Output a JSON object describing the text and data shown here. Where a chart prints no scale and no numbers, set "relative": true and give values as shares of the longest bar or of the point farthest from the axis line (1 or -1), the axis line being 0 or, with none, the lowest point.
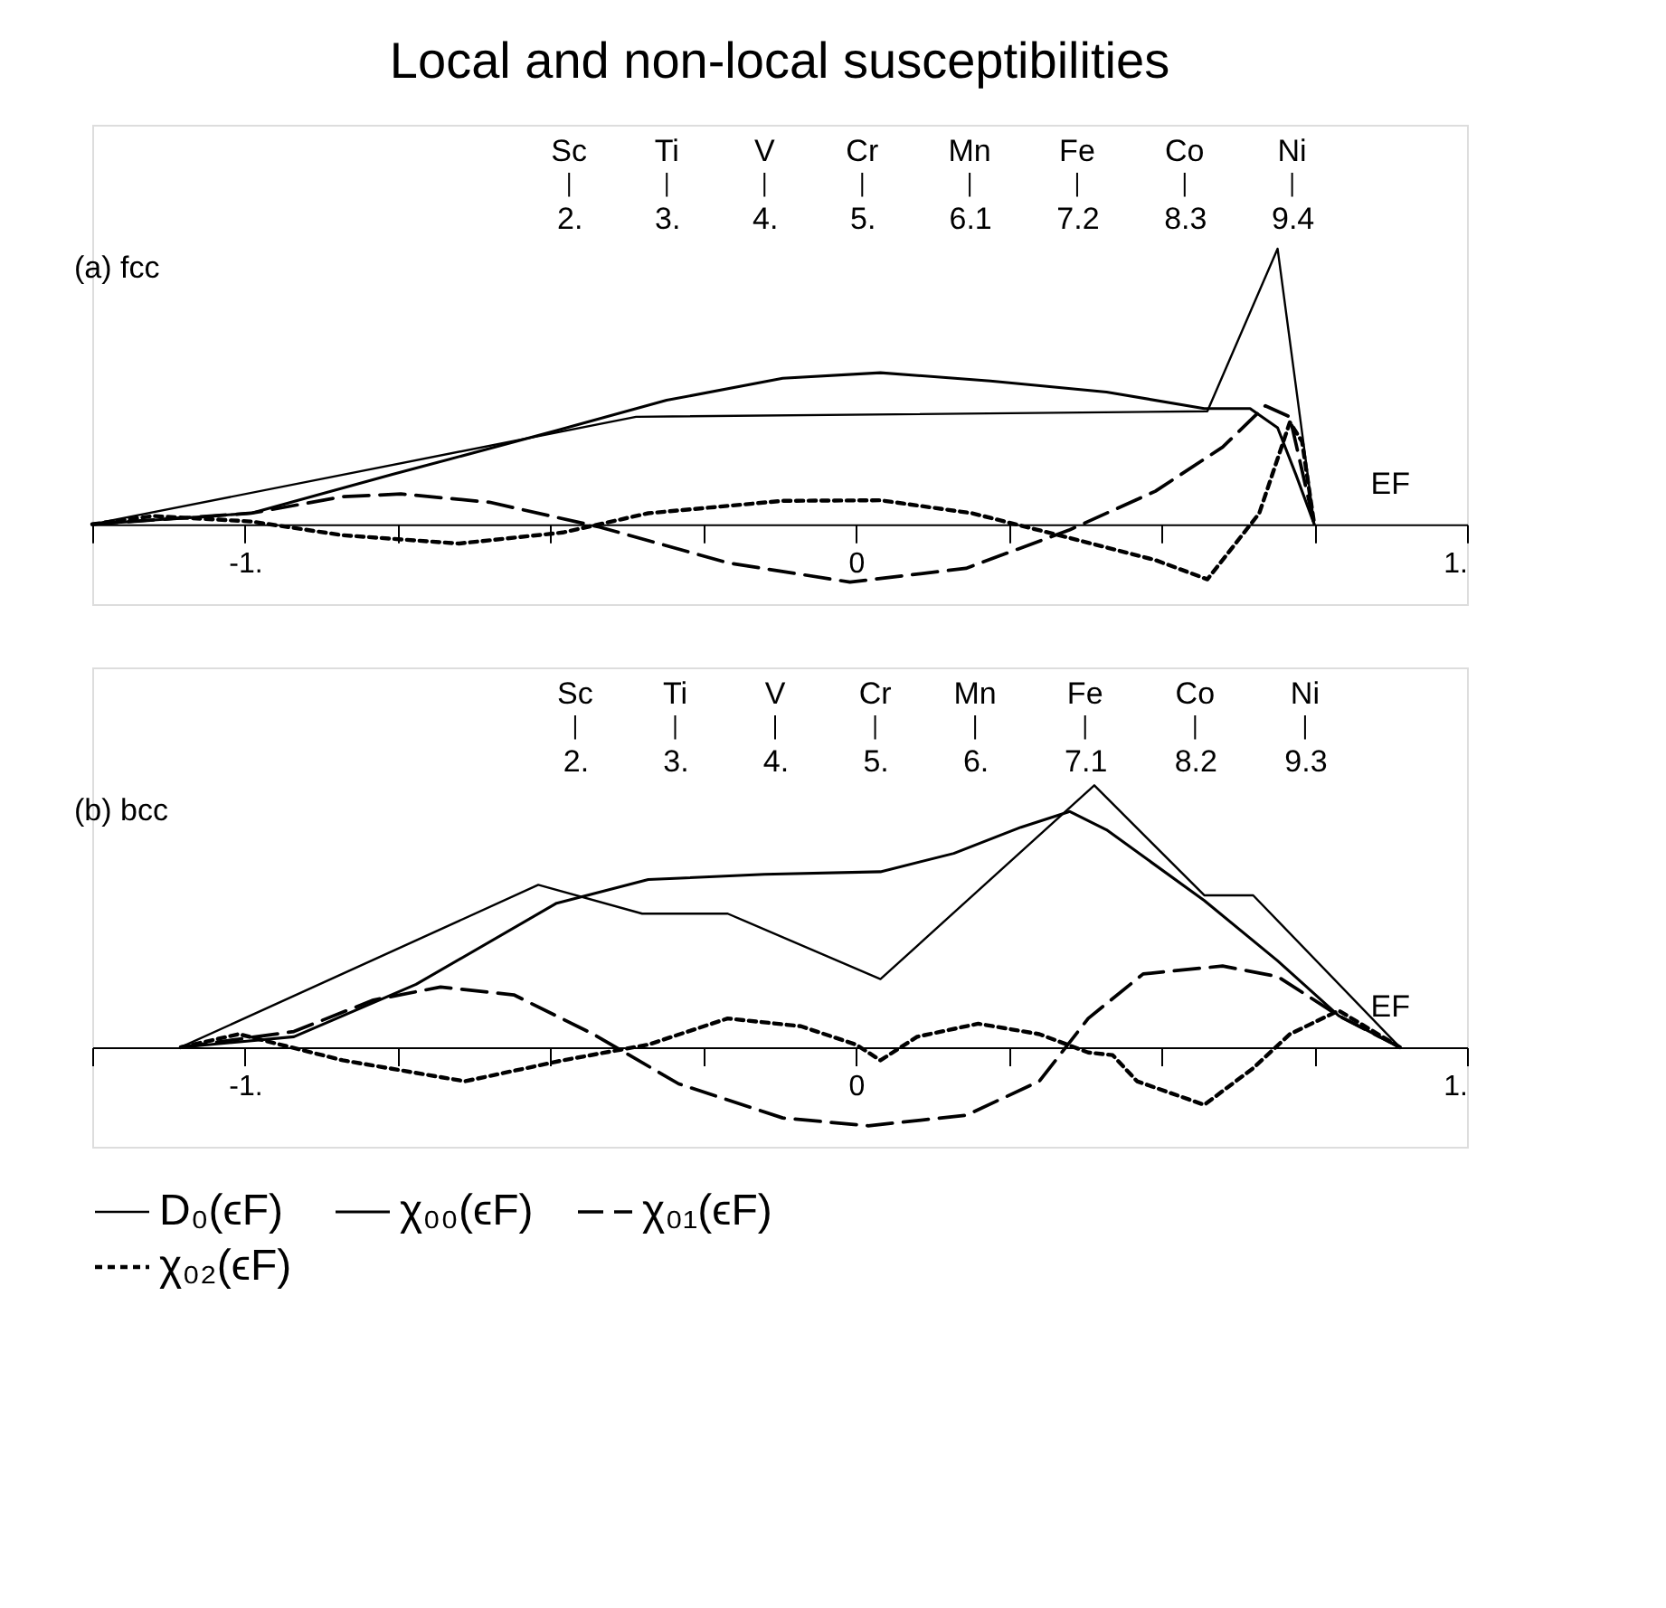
{
  "chart_data": [
    {
      "type": "line",
      "title": "Local and non-local susceptibilities",
      "relative": true,
      "legend": false,
      "xlim": [
        -1.25,
        1
      ],
      "xticks": [
        {
          "value": -1.25,
          "label": null
        },
        {
          "value": -1,
          "label": "-1."
        },
        {
          "value": -0.75,
          "label": null
        },
        {
          "value": -0.5,
          "label": null
        },
        {
          "value": -0.25,
          "label": null
        },
        0,
        {
          "value": 0.25,
          "label": null
        },
        {
          "value": 0.5,
          "label": null
        },
        {
          "value": 0.75,
          "label": null
        },
        {
          "value": 1,
          "label": "1."
        }
      ],
      "x2lim": [
        -2.88,
        11.19
      ],
      "x2ticks": [
        {
          "value": 2,
          "label": "2."
        },
        {
          "value": 3,
          "label": "3."
        },
        {
          "value": 4,
          "label": "4."
        },
        {
          "value": 5,
          "label": "5."
        },
        6.1,
        7.2,
        8.3,
        9.4
      ],
      "tick_labels": "x",
      "grid": false,
      "series": [
        {
          "color": "#000000",
          "line_style": "solid",
          "x": [
            -1.25,
            -0.36,
            0.575,
            0.69,
            0.75
          ],
          "values": [
            0,
            0.39,
            0.41,
            1,
            0
          ]
        },
        {
          "color": "#000000",
          "line_style": "solid",
          "x": [
            -1.25,
            -0.99,
            -0.76,
            -0.49,
            -0.31,
            -0.12,
            0.04,
            0.22,
            0.41,
            0.57,
            0.645,
            0.69,
            0.72,
            0.75
          ],
          "values": [
            0,
            0.04,
            0.18,
            0.34,
            0.45,
            0.53,
            0.55,
            0.52,
            0.48,
            0.42,
            0.42,
            0.35,
            0.18,
            0
          ]
        },
        {
          "color": "#000000",
          "line_style": "dashed",
          "x": [
            -1.25,
            -0.99,
            -0.84,
            -0.745,
            -0.6,
            -0.42,
            -0.21,
            -0.01,
            0.18,
            0.35,
            0.49,
            0.6,
            0.67,
            0.71,
            0.75
          ],
          "values": [
            0,
            0.04,
            0.1,
            0.11,
            0.08,
            -0.01,
            -0.14,
            -0.21,
            -0.16,
            -0.02,
            0.12,
            0.28,
            0.43,
            0.39,
            0
          ]
        },
        {
          "color": "#000000",
          "line_style": "dotted",
          "x": [
            -1.25,
            -1.15,
            -0.99,
            -0.84,
            -0.65,
            -0.48,
            -0.34,
            -0.12,
            0.04,
            0.19,
            0.35,
            0.49,
            0.575,
            0.66,
            0.71,
            0.73,
            0.75
          ],
          "values": [
            0,
            0.03,
            0.01,
            -0.04,
            -0.07,
            -0.03,
            0.04,
            0.085,
            0.087,
            0.04,
            -0.05,
            -0.13,
            -0.2,
            0.04,
            0.37,
            0.3,
            0
          ]
        }
      ],
      "annotations": [
        "(a) fcc",
        "EF",
        "Sc",
        "Ti",
        "V",
        "Cr",
        "Mn",
        "Fe",
        "Co",
        "Ni"
      ]
    },
    {
      "type": "line",
      "relative": true,
      "legend": "bottom",
      "xlim": [
        -1.25,
        1
      ],
      "xticks": [
        {
          "value": -1.25,
          "label": null
        },
        {
          "value": -1,
          "label": "-1."
        },
        {
          "value": -0.75,
          "label": null
        },
        {
          "value": -0.5,
          "label": null
        },
        {
          "value": -0.25,
          "label": null
        },
        0,
        {
          "value": 0.25,
          "label": null
        },
        {
          "value": 0.5,
          "label": null
        },
        {
          "value": 0.75,
          "label": null
        },
        {
          "value": 1,
          "label": "1."
        }
      ],
      "x2lim": [
        -2.83,
        10.92
      ],
      "x2ticks": [
        {
          "value": 2,
          "label": "2."
        },
        {
          "value": 3,
          "label": "3."
        },
        {
          "value": 4,
          "label": "4."
        },
        {
          "value": 5,
          "label": "5."
        },
        {
          "value": 6,
          "label": "6."
        },
        7.1,
        8.2,
        9.3
      ],
      "tick_labels": "x",
      "grid": false,
      "series": [
        {
          "name": "D₀(ϵF)",
          "color": "#000000",
          "line_style": "solid",
          "x": [
            -1.105,
            -0.52,
            -0.35,
            -0.21,
            0.04,
            0.39,
            0.57,
            0.65,
            0.89
          ],
          "values": [
            0,
            0.62,
            0.51,
            0.51,
            0.26,
            1,
            0.58,
            0.58,
            0
          ]
        },
        {
          "name": "χ₀₀(ϵF)",
          "color": "#000000",
          "line_style": "solid",
          "x": [
            -1.105,
            -0.92,
            -0.72,
            -0.49,
            -0.34,
            -0.15,
            0.04,
            0.16,
            0.27,
            0.35,
            0.41,
            0.57,
            0.69,
            0.79,
            0.89
          ],
          "values": [
            0,
            0.04,
            0.24,
            0.55,
            0.64,
            0.66,
            0.67,
            0.74,
            0.84,
            0.9,
            0.83,
            0.56,
            0.33,
            0.12,
            0
          ]
        },
        {
          "name": "χ₀₁(ϵF)",
          "color": "#000000",
          "line_style": "dashed",
          "x": [
            -1.105,
            -0.92,
            -0.79,
            -0.68,
            -0.56,
            -0.43,
            -0.29,
            -0.12,
            0.02,
            0.18,
            0.3,
            0.38,
            0.47,
            0.6,
            0.69,
            0.79,
            0.89
          ],
          "values": [
            0,
            0.06,
            0.18,
            0.23,
            0.2,
            0.05,
            -0.14,
            -0.27,
            -0.3,
            -0.26,
            -0.13,
            0.11,
            0.28,
            0.31,
            0.27,
            0.12,
            0
          ]
        },
        {
          "name": "χ₀₂(ϵF)",
          "color": "#000000",
          "line_style": "dotted",
          "x": [
            -1.105,
            -1.01,
            -0.84,
            -0.64,
            -0.48,
            -0.34,
            -0.21,
            -0.09,
            0,
            0.04,
            0.1,
            0.2,
            0.3,
            0.38,
            0.42,
            0.46,
            0.57,
            0.65,
            0.71,
            0.79,
            0.89
          ],
          "values": [
            0,
            0.05,
            -0.05,
            -0.13,
            -0.05,
            0.01,
            0.11,
            0.08,
            0.01,
            -0.05,
            0.04,
            0.09,
            0.05,
            -0.02,
            -0.03,
            -0.13,
            -0.22,
            -0.08,
            0.05,
            0.14,
            0
          ]
        }
      ],
      "annotations": [
        "(b) bcc",
        "EF",
        "Sc",
        "Ti",
        "V",
        "Cr",
        "Mn",
        "Fe",
        "Co",
        "Ni"
      ]
    }
  ]
}
